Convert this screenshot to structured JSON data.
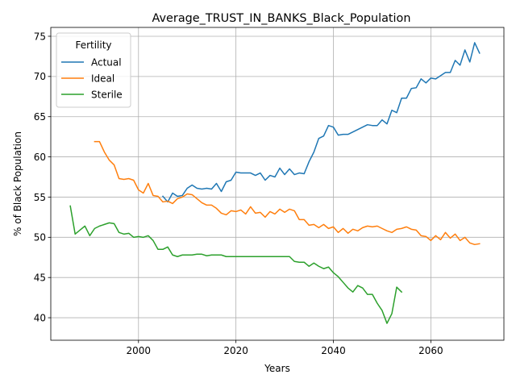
{
  "chart_data": {
    "type": "line",
    "title": "Average_TRUST_IN_BANKS_Black_Population",
    "xlabel": "Years",
    "ylabel": "% of Black Population",
    "xlim": [
      1982,
      2075
    ],
    "ylim": [
      37.2,
      76.1
    ],
    "xticks": [
      2000,
      2020,
      2040,
      2060
    ],
    "yticks": [
      40,
      45,
      50,
      55,
      60,
      65,
      70,
      75
    ],
    "grid": true,
    "legend": {
      "title": "Fertility",
      "position": "upper-left"
    },
    "series": [
      {
        "name": "Actual",
        "color": "#1f77b4",
        "x": [
          2005,
          2006,
          2007,
          2008,
          2009,
          2010,
          2011,
          2012,
          2013,
          2014,
          2015,
          2016,
          2017,
          2018,
          2019,
          2020,
          2021,
          2022,
          2023,
          2024,
          2025,
          2026,
          2027,
          2028,
          2029,
          2030,
          2031,
          2032,
          2033,
          2034,
          2035,
          2036,
          2037,
          2038,
          2039,
          2040,
          2041,
          2042,
          2043,
          2044,
          2045,
          2046,
          2047,
          2048,
          2049,
          2050,
          2051,
          2052,
          2053,
          2054,
          2055,
          2056,
          2057,
          2058,
          2059,
          2060,
          2061,
          2062,
          2063,
          2064,
          2065,
          2066,
          2067,
          2068,
          2069,
          2070
        ],
        "y": [
          55.1,
          54.4,
          55.5,
          55.1,
          55.2,
          56.1,
          56.5,
          56.1,
          56.0,
          56.1,
          56.0,
          56.7,
          55.7,
          56.9,
          57.1,
          58.1,
          58.0,
          58.0,
          58.0,
          57.7,
          58.0,
          57.1,
          57.7,
          57.5,
          58.6,
          57.8,
          58.5,
          57.8,
          58.0,
          57.9,
          59.4,
          60.6,
          62.3,
          62.6,
          63.9,
          63.7,
          62.7,
          62.8,
          62.8,
          63.1,
          63.4,
          63.7,
          64.0,
          63.9,
          63.9,
          64.6,
          64.1,
          65.8,
          65.5,
          67.3,
          67.3,
          68.5,
          68.6,
          69.7,
          69.2,
          69.8,
          69.7,
          70.1,
          70.5,
          70.5,
          72.0,
          71.4,
          73.3,
          71.8,
          74.2,
          72.9
        ]
      },
      {
        "name": "Ideal",
        "color": "#ff7f0e",
        "x": [
          1991,
          1992,
          1993,
          1994,
          1995,
          1996,
          1997,
          1998,
          1999,
          2000,
          2001,
          2002,
          2003,
          2004,
          2005,
          2006,
          2007,
          2008,
          2009,
          2010,
          2011,
          2012,
          2013,
          2014,
          2015,
          2016,
          2017,
          2018,
          2019,
          2020,
          2021,
          2022,
          2023,
          2024,
          2025,
          2026,
          2027,
          2028,
          2029,
          2030,
          2031,
          2032,
          2033,
          2034,
          2035,
          2036,
          2037,
          2038,
          2039,
          2040,
          2041,
          2042,
          2043,
          2044,
          2045,
          2046,
          2047,
          2048,
          2049,
          2050,
          2051,
          2052,
          2053,
          2054,
          2055,
          2056,
          2057,
          2058,
          2059,
          2060,
          2061,
          2062,
          2063,
          2064,
          2065,
          2066,
          2067,
          2068,
          2069,
          2070
        ],
        "y": [
          61.9,
          61.9,
          60.6,
          59.6,
          59.0,
          57.3,
          57.2,
          57.3,
          57.1,
          55.9,
          55.5,
          56.7,
          55.2,
          55.1,
          54.4,
          54.5,
          54.2,
          54.8,
          55.0,
          55.4,
          55.3,
          54.8,
          54.3,
          54.0,
          54.0,
          53.6,
          53.0,
          52.8,
          53.3,
          53.2,
          53.4,
          52.9,
          53.8,
          53.0,
          53.1,
          52.5,
          53.2,
          52.9,
          53.5,
          53.1,
          53.5,
          53.3,
          52.2,
          52.2,
          51.5,
          51.6,
          51.2,
          51.6,
          51.1,
          51.3,
          50.6,
          51.1,
          50.5,
          51.0,
          50.8,
          51.2,
          51.4,
          51.3,
          51.4,
          51.1,
          50.8,
          50.6,
          51.0,
          51.1,
          51.3,
          51.0,
          50.9,
          50.2,
          50.1,
          49.6,
          50.2,
          49.7,
          50.6,
          49.9,
          50.4,
          49.6,
          50.0,
          49.3,
          49.1,
          49.2
        ]
      },
      {
        "name": "Sterile",
        "color": "#2ca02c",
        "x": [
          1986,
          1987,
          1988,
          1989,
          1990,
          1991,
          1992,
          1993,
          1994,
          1995,
          1996,
          1997,
          1998,
          1999,
          2000,
          2001,
          2002,
          2003,
          2004,
          2005,
          2006,
          2007,
          2008,
          2009,
          2010,
          2011,
          2012,
          2013,
          2014,
          2015,
          2016,
          2017,
          2018,
          2019,
          2020,
          2021,
          2022,
          2023,
          2024,
          2025,
          2026,
          2027,
          2028,
          2029,
          2030,
          2031,
          2032,
          2033,
          2034,
          2035,
          2036,
          2037,
          2038,
          2039,
          2040,
          2041,
          2042,
          2043,
          2044,
          2045,
          2046,
          2047,
          2048,
          2049,
          2050,
          2051,
          2052,
          2053,
          2054
        ],
        "y": [
          53.9,
          50.4,
          50.9,
          51.4,
          50.2,
          51.1,
          51.4,
          51.6,
          51.8,
          51.7,
          50.6,
          50.4,
          50.5,
          50.0,
          50.1,
          50.0,
          50.2,
          49.6,
          48.5,
          48.5,
          48.8,
          47.8,
          47.6,
          47.8,
          47.8,
          47.8,
          47.9,
          47.9,
          47.7,
          47.8,
          47.8,
          47.8,
          47.6,
          47.6,
          47.6,
          47.6,
          47.6,
          47.6,
          47.6,
          47.6,
          47.6,
          47.6,
          47.6,
          47.6,
          47.6,
          47.6,
          47.0,
          46.9,
          46.9,
          46.4,
          46.8,
          46.4,
          46.1,
          46.3,
          45.6,
          45.1,
          44.4,
          43.7,
          43.2,
          44.0,
          43.7,
          42.9,
          42.9,
          41.8,
          40.9,
          39.3,
          40.5,
          43.8,
          43.2
        ]
      }
    ]
  }
}
